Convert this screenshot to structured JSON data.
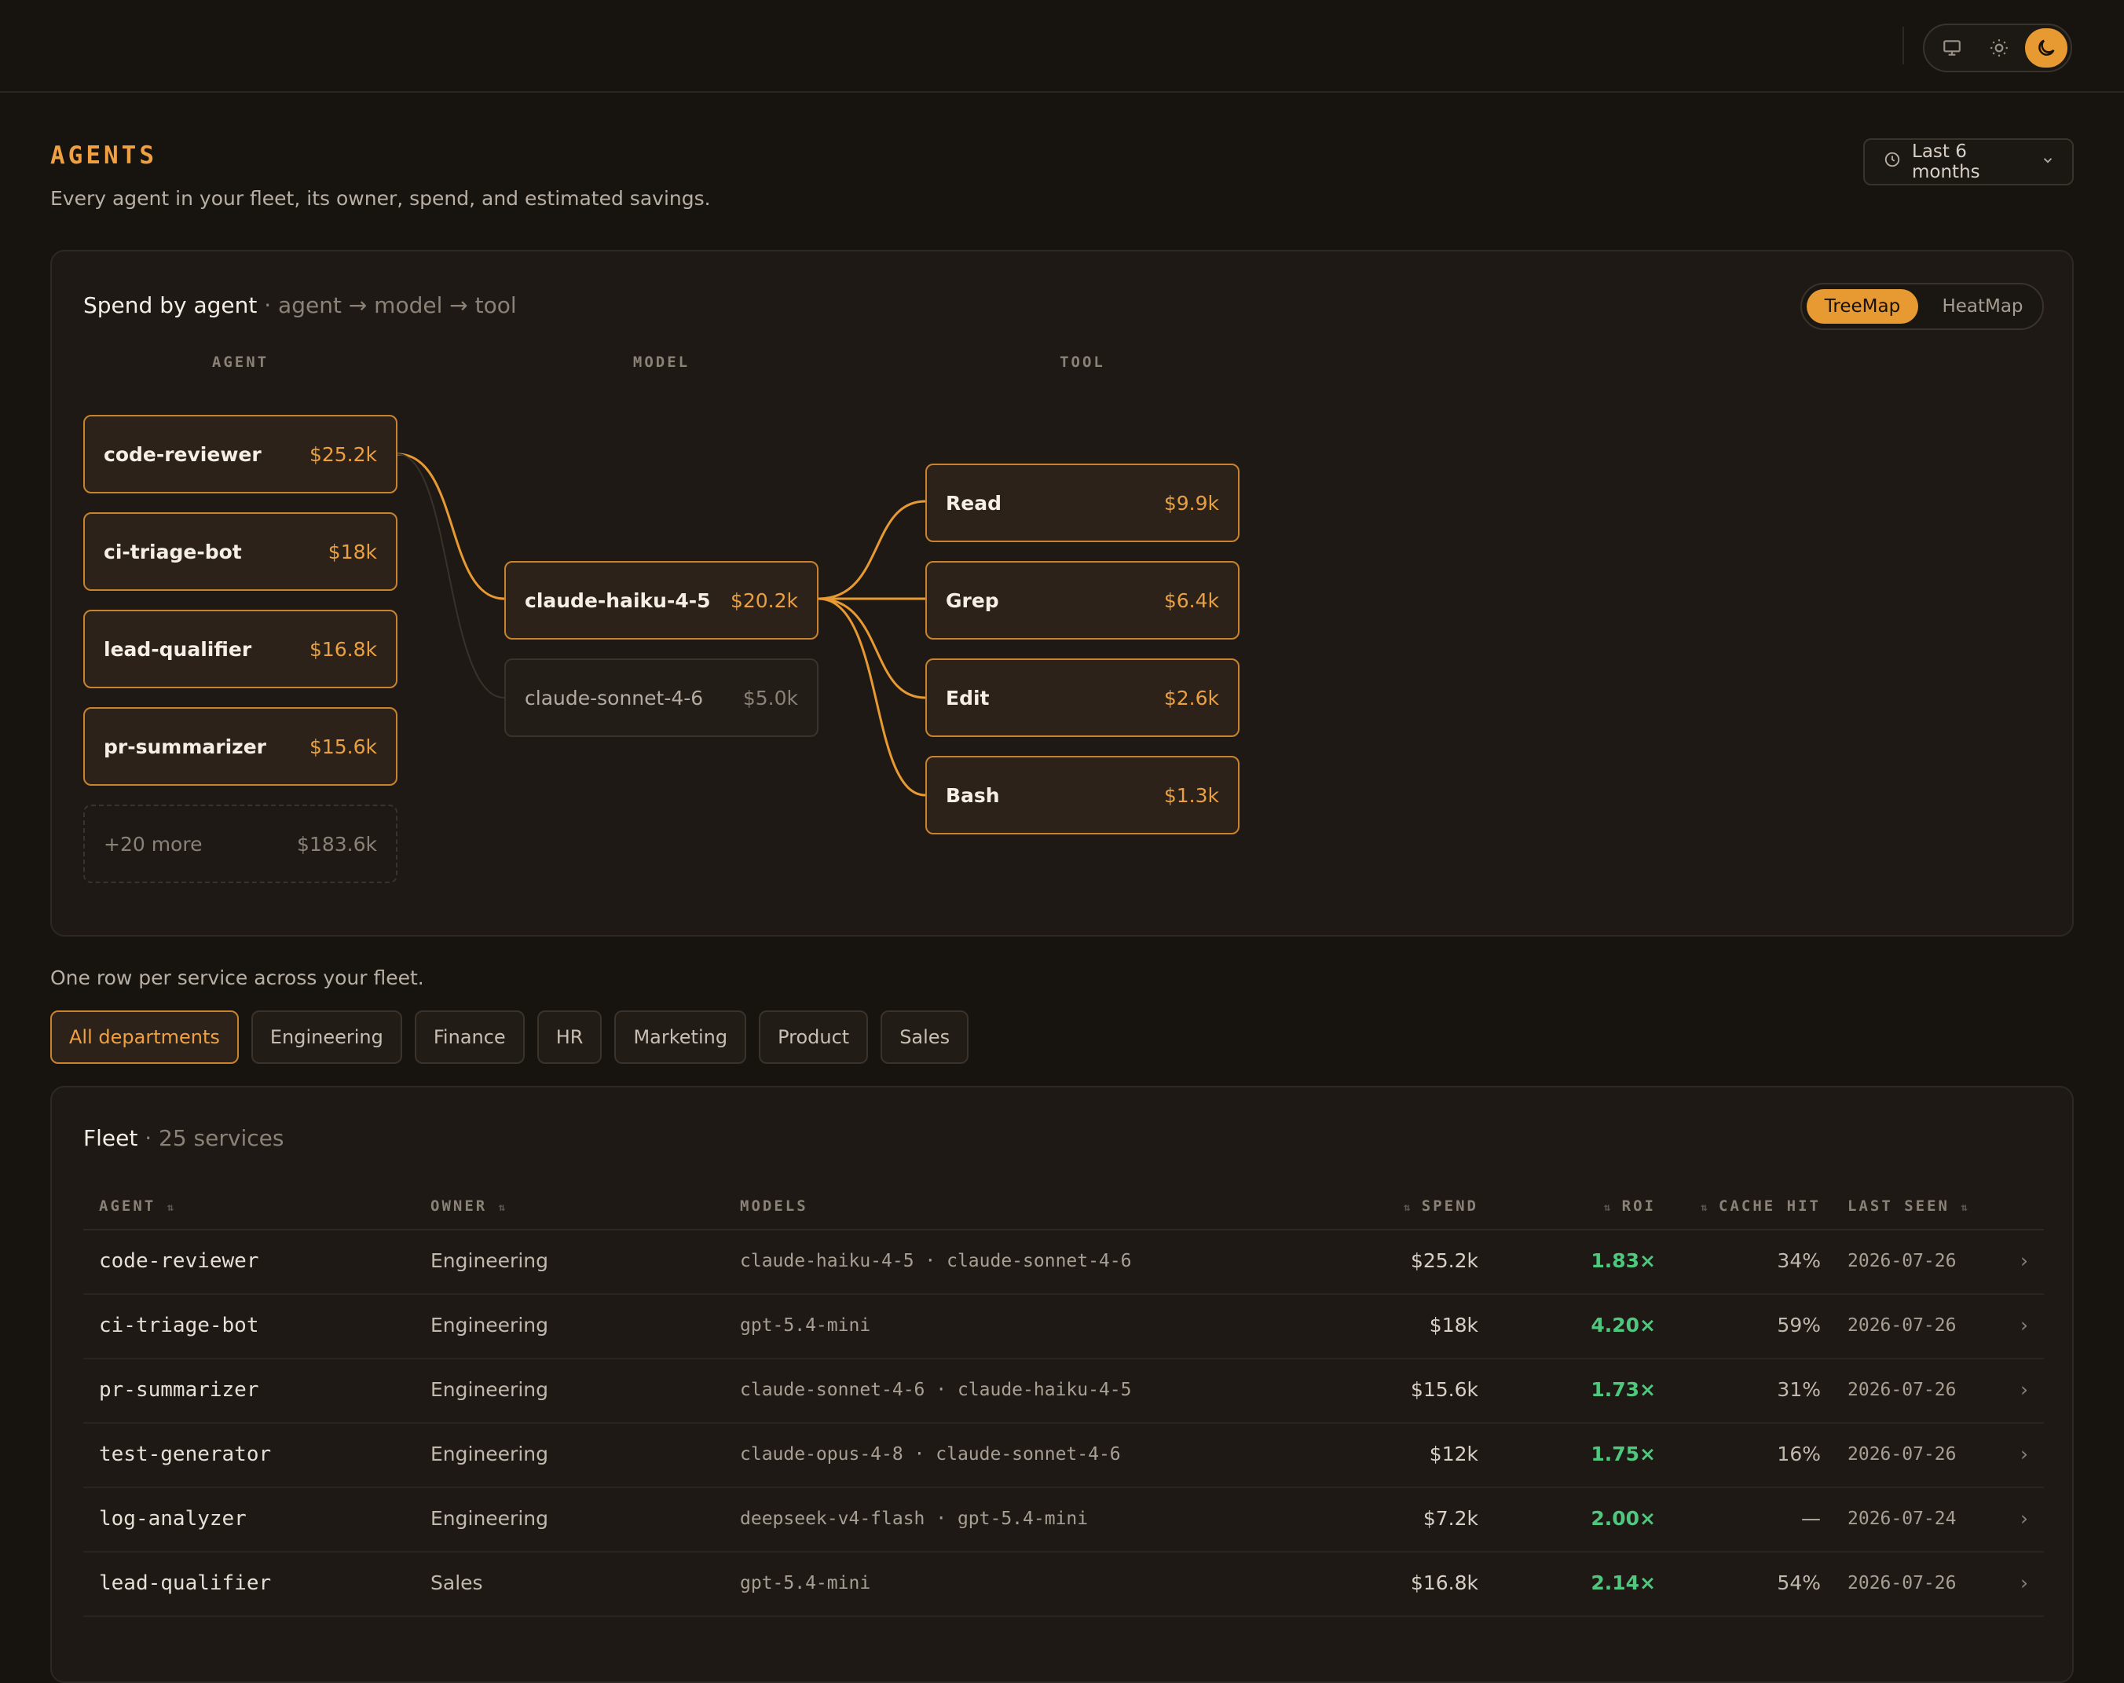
{
  "header": {
    "theme_options": [
      "monitor-icon",
      "sun-icon",
      "moon-icon"
    ],
    "active_theme": "dark"
  },
  "page": {
    "title": "AGENTS",
    "subtitle": "Every agent in your fleet, its owner, spend, and estimated savings.",
    "range_label": "Last 6 months"
  },
  "sankey": {
    "title": "Spend by agent",
    "subtitle": "agent → model → tool",
    "view_options": {
      "active": "TreeMap",
      "inactive": "HeatMap"
    },
    "columns": {
      "agent": "AGENT",
      "model": "MODEL",
      "tool": "TOOL"
    },
    "agents": [
      {
        "label": "code-reviewer",
        "value": "$25.2k"
      },
      {
        "label": "ci-triage-bot",
        "value": "$18k"
      },
      {
        "label": "lead-qualifier",
        "value": "$16.8k"
      },
      {
        "label": "pr-summarizer",
        "value": "$15.6k"
      },
      {
        "label": "+20 more",
        "value": "$183.6k"
      }
    ],
    "models": [
      {
        "label": "claude-haiku-4-5",
        "value": "$20.2k"
      },
      {
        "label": "claude-sonnet-4-6",
        "value": "$5.0k"
      }
    ],
    "tools": [
      {
        "label": "Read",
        "value": "$9.9k"
      },
      {
        "label": "Grep",
        "value": "$6.4k"
      },
      {
        "label": "Edit",
        "value": "$2.6k"
      },
      {
        "label": "Bash",
        "value": "$1.3k"
      }
    ],
    "accent": "#e89a32"
  },
  "fleet": {
    "caption": "One row per service across your fleet.",
    "filters": [
      "All departments",
      "Engineering",
      "Finance",
      "HR",
      "Marketing",
      "Product",
      "Sales"
    ],
    "active_filter": "All departments",
    "title": "Fleet",
    "count": "25 services",
    "columns": {
      "agent": "AGENT",
      "owner": "OWNER",
      "models": "MODELS",
      "spend": "SPEND",
      "roi": "ROI",
      "cache": "CACHE HIT",
      "seen": "LAST SEEN"
    },
    "rows": [
      {
        "agent": "code-reviewer",
        "owner": "Engineering",
        "models": "claude-haiku-4-5 · claude-sonnet-4-6",
        "spend": "$25.2k",
        "roi": "1.83×",
        "cache": "34%",
        "seen": "2026-07-26"
      },
      {
        "agent": "ci-triage-bot",
        "owner": "Engineering",
        "models": "gpt-5.4-mini",
        "spend": "$18k",
        "roi": "4.20×",
        "cache": "59%",
        "seen": "2026-07-26"
      },
      {
        "agent": "pr-summarizer",
        "owner": "Engineering",
        "models": "claude-sonnet-4-6 · claude-haiku-4-5",
        "spend": "$15.6k",
        "roi": "1.73×",
        "cache": "31%",
        "seen": "2026-07-26"
      },
      {
        "agent": "test-generator",
        "owner": "Engineering",
        "models": "claude-opus-4-8 · claude-sonnet-4-6",
        "spend": "$12k",
        "roi": "1.75×",
        "cache": "16%",
        "seen": "2026-07-26"
      },
      {
        "agent": "log-analyzer",
        "owner": "Engineering",
        "models": "deepseek-v4-flash · gpt-5.4-mini",
        "spend": "$7.2k",
        "roi": "2.00×",
        "cache": "—",
        "seen": "2026-07-24"
      },
      {
        "agent": "lead-qualifier",
        "owner": "Sales",
        "models": "gpt-5.4-mini",
        "spend": "$16.8k",
        "roi": "2.14×",
        "cache": "54%",
        "seen": "2026-07-26"
      }
    ],
    "roi_color": "#4fc77e"
  }
}
